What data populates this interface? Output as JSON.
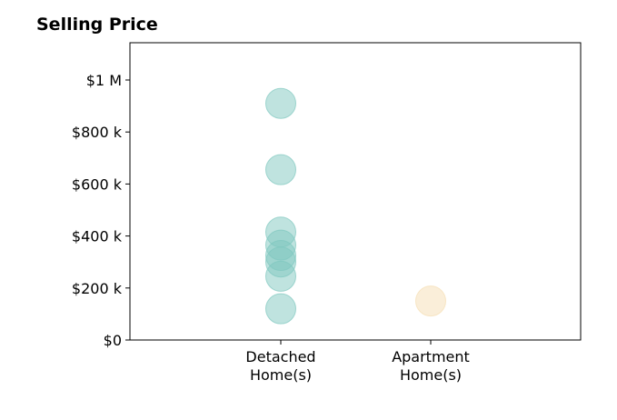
{
  "chart_data": {
    "type": "scatter",
    "title": "Selling Price",
    "categories": [
      "Detached\nHome(s)",
      "Apartment\nHome(s)"
    ],
    "ylim": [
      0,
      1000000
    ],
    "y_ticks": [
      {
        "value": 0,
        "label": "$0"
      },
      {
        "value": 200000,
        "label": "$200 k"
      },
      {
        "value": 400000,
        "label": "$400 k"
      },
      {
        "value": 600000,
        "label": "$600 k"
      },
      {
        "value": 800000,
        "label": "$800 k"
      },
      {
        "value": 1000000,
        "label": "$1 M"
      }
    ],
    "grid": false,
    "series": [
      {
        "category": "Detached\nHome(s)",
        "color": "#7fc7bf",
        "values": [
          910000,
          655000,
          415000,
          365000,
          325000,
          300000,
          245000,
          120000
        ]
      },
      {
        "category": "Apartment\nHome(s)",
        "color": "#f5deb3",
        "values": [
          150000
        ]
      }
    ]
  }
}
